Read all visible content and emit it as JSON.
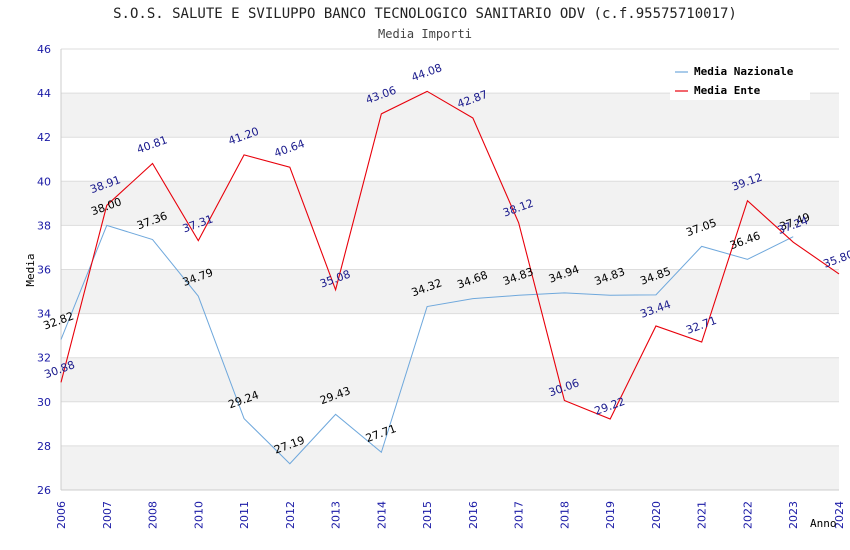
{
  "chart_data": {
    "type": "line",
    "title": "S.O.S. SALUTE E SVILUPPO BANCO TECNOLOGICO SANITARIO ODV (c.f.95575710017)",
    "subtitle": "Media Importi",
    "xlabel": "Anno",
    "ylabel": "Media",
    "ylim": [
      26,
      46
    ],
    "yticks": [
      26,
      28,
      30,
      32,
      34,
      36,
      38,
      40,
      42,
      44,
      46
    ],
    "grid": true,
    "legend_position": "top-right",
    "categories": [
      "2006",
      "2007",
      "2008",
      "2010",
      "2011",
      "2012",
      "2013",
      "2014",
      "2015",
      "2016",
      "2017",
      "2018",
      "2019",
      "2020",
      "2021",
      "2022",
      "2023",
      "2024"
    ],
    "series": [
      {
        "name": "Media Nazionale",
        "color": "#6fa8dc",
        "values": [
          32.82,
          38.0,
          37.36,
          34.79,
          29.24,
          27.19,
          29.43,
          27.71,
          34.32,
          34.68,
          34.83,
          34.94,
          34.83,
          34.85,
          37.05,
          36.46,
          37.49,
          null
        ],
        "labels": [
          "32.82",
          "38.00",
          "37.36",
          "34.79",
          "29.24",
          "27.19",
          "29.43",
          "27.71",
          "34.32",
          "34.68",
          "34.83",
          "34.94",
          "34.83",
          "34.85",
          "37.05",
          "36.46",
          "37.49",
          null
        ]
      },
      {
        "name": "Media Ente",
        "color": "#e8000b",
        "values": [
          30.88,
          38.91,
          40.81,
          37.31,
          41.2,
          40.64,
          35.08,
          43.06,
          44.08,
          42.87,
          38.12,
          30.06,
          29.22,
          33.44,
          32.71,
          39.12,
          37.24,
          35.8
        ],
        "labels": [
          "30.88",
          "38.91",
          "40.81",
          "37.31",
          "41.20",
          "40.64",
          "35.08",
          "43.06",
          "44.08",
          "42.87",
          "38.12",
          "30.06",
          "29.22",
          "33.44",
          "32.71",
          "39.12",
          "37.24",
          "35.80"
        ]
      }
    ]
  }
}
